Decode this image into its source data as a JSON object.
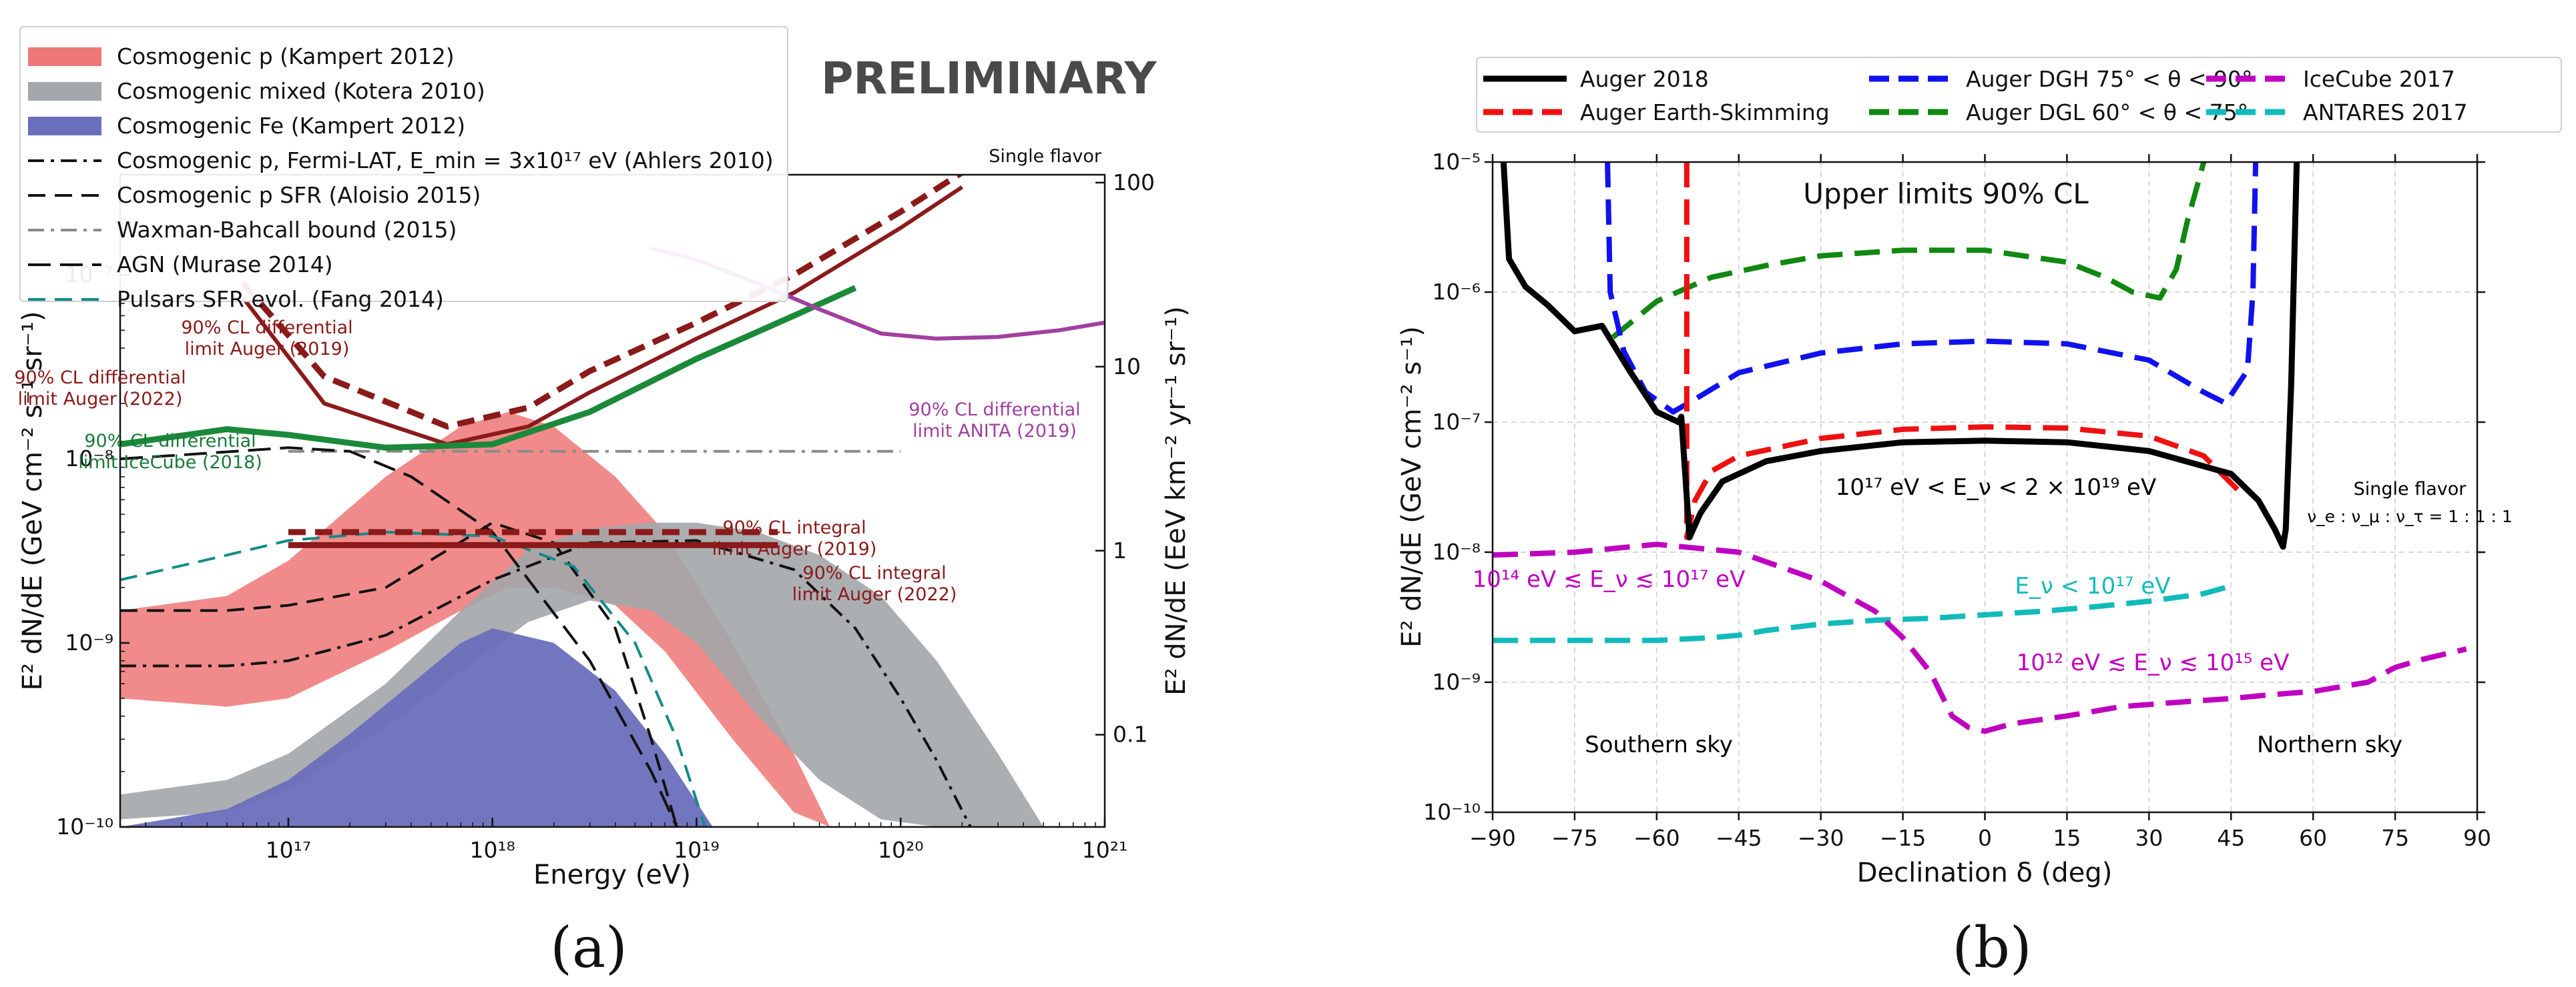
{
  "chart_data": [
    {
      "panel_label": "(a)",
      "type": "line",
      "watermark": "PRELIMINARY",
      "corner_note": "Single flavor",
      "xlabel": "Energy (eV)",
      "ylabel": "E² dN/dE (GeV cm⁻² s⁻¹ sr⁻¹)",
      "ylabel_right": "E² dN/dE (EeV km⁻² yr⁻¹ sr⁻¹)",
      "x_scale": "log",
      "y_scale": "log",
      "xlim": [
        1.5e+16,
        1e+21
      ],
      "ylim": [
        1e-10,
        3.5e-07
      ],
      "x_ticks": [
        "10¹⁷",
        "10¹⁸",
        "10¹⁹",
        "10²⁰",
        "10²¹"
      ],
      "y_ticks": [
        "10⁻¹⁰",
        "10⁻⁹",
        "10⁻⁸",
        "10⁻⁷"
      ],
      "y_right_ticks": [
        "0.1",
        "1",
        "10",
        "100"
      ],
      "legend_position": "top-left",
      "legend": [
        {
          "label": "Cosmogenic p (Kampert 2012)",
          "kind": "band",
          "color": "#ee7777"
        },
        {
          "label": "Cosmogenic mixed (Kotera 2010)",
          "kind": "band",
          "color": "#a3a6aa"
        },
        {
          "label": "Cosmogenic Fe (Kampert 2012)",
          "kind": "band",
          "color": "#6a6fbb"
        },
        {
          "label": "Cosmogenic p, Fermi-LAT, E_min = 3x10¹⁷ eV (Ahlers 2010)",
          "kind": "dashdot",
          "color": "#111111"
        },
        {
          "label": "Cosmogenic p SFR (Aloisio 2015)",
          "kind": "dashed",
          "color": "#111111"
        },
        {
          "label": "Waxman-Bahcall bound (2015)",
          "kind": "dashdot",
          "color": "#8a8a8a"
        },
        {
          "label": "AGN (Murase 2014)",
          "kind": "longdash",
          "color": "#111111"
        },
        {
          "label": "Pulsars SFR evol. (Fang 2014)",
          "kind": "dashed",
          "color": "#138a8a"
        }
      ],
      "annotations": [
        {
          "text": [
            "90% CL differential",
            "limit Auger (2019)"
          ],
          "color": "#8b1a1a"
        },
        {
          "text": [
            "90% CL differential",
            "limit Auger (2022)"
          ],
          "color": "#8b1a1a"
        },
        {
          "text": [
            "90% CL differential",
            "limit IceCube (2018)"
          ],
          "color": "#1a7a3a"
        },
        {
          "text": [
            "90% CL differential",
            "limit ANITA (2019)"
          ],
          "color": "#a040a0"
        },
        {
          "text": [
            "90% CL integral",
            "limit Auger (2019)"
          ],
          "color": "#8b1a1a"
        },
        {
          "text": [
            "90% CL integral",
            "limit Auger (2022)"
          ],
          "color": "#8b1a1a"
        }
      ],
      "bands": [
        {
          "name": "Cosmogenic p (Kampert 2012)",
          "color": "#ee7777",
          "alpha": 0.85,
          "x": [
            1.5e+16,
            5e+16,
            1e+17,
            3e+17,
            7e+17,
            1.2e+18,
            2e+18,
            4e+18,
            7e+18,
            1.5e+19,
            3e+19,
            4.5e+19
          ],
          "upper": [
            1.5e-09,
            1.8e-09,
            2.8e-09,
            8e-09,
            1.5e-08,
            1.8e-08,
            1.5e-08,
            8e-09,
            4e-09,
            1e-09,
            2.5e-10,
            1e-10
          ],
          "lower": [
            5e-10,
            4.5e-10,
            5e-10,
            9e-10,
            1.5e-09,
            2e-09,
            2e-09,
            1.6e-09,
            9e-10,
            3e-10,
            1.2e-10,
            1e-10
          ]
        },
        {
          "name": "Cosmogenic mixed (Kotera 2010)",
          "color": "#a3a6aa",
          "alpha": 0.9,
          "x": [
            1.5e+16,
            5e+16,
            1e+17,
            3e+17,
            7e+17,
            1.5e+18,
            3e+18,
            6e+18,
            1e+19,
            2e+19,
            4e+19,
            8e+19,
            1.5e+20,
            3e+20,
            5e+20
          ],
          "upper": [
            1.5e-10,
            1.8e-10,
            2.5e-10,
            6e-10,
            1.5e-09,
            3.2e-09,
            4.2e-09,
            4.5e-09,
            4.5e-09,
            4e-09,
            3e-09,
            1.8e-09,
            8e-10,
            2.5e-10,
            1e-10
          ],
          "lower": [
            1.1e-10,
            1.2e-10,
            1.6e-10,
            3.5e-10,
            7e-10,
            1.3e-09,
            1.7e-09,
            1.5e-09,
            1e-09,
            4e-10,
            1.8e-10,
            1.1e-10,
            1e-10,
            1e-10,
            1e-10
          ]
        },
        {
          "name": "Cosmogenic Fe (Kampert 2012)",
          "color": "#6a6fbb",
          "alpha": 0.95,
          "x": [
            1.5e+16,
            5e+16,
            1e+17,
            2e+17,
            4e+17,
            7e+17,
            1e+18,
            2e+18,
            4e+18,
            7e+18,
            1.2e+19
          ],
          "upper": [
            1e-10,
            1.25e-10,
            1.8e-10,
            3.2e-10,
            6e-10,
            1e-09,
            1.2e-09,
            1e-09,
            5.5e-10,
            2.5e-10,
            1e-10
          ],
          "lower": [
            1e-10,
            1e-10,
            1e-10,
            1e-10,
            1e-10,
            1e-10,
            1e-10,
            1e-10,
            1e-10,
            1e-10,
            1e-10
          ]
        }
      ],
      "series": [
        {
          "name": "Cosmogenic p, Fermi-LAT, E_min = 3x10¹⁷ eV (Ahlers 2010)",
          "color": "#111111",
          "dash": "dashdot",
          "x": [
            1.5e+16,
            5e+16,
            1e+17,
            3e+17,
            1e+18,
            3e+18,
            1e+19,
            3e+19,
            6e+19,
            1e+20,
            1.5e+20,
            2.2e+20
          ],
          "y": [
            7.5e-10,
            7.5e-10,
            8e-10,
            1.1e-09,
            2.2e-09,
            3.5e-09,
            3.6e-09,
            2.5e-09,
            1.2e-09,
            5e-10,
            2.3e-10,
            1e-10
          ]
        },
        {
          "name": "Cosmogenic p SFR (Aloisio 2015)",
          "color": "#111111",
          "dash": "dashed",
          "x": [
            1.5e+16,
            5e+16,
            1e+17,
            3e+17,
            1e+18,
            2e+18,
            4e+18,
            6e+18,
            8e+18
          ],
          "y": [
            1.5e-09,
            1.5e-09,
            1.6e-09,
            2e-09,
            4.5e-09,
            3.5e-09,
            1.2e-09,
            3e-10,
            1e-10
          ]
        },
        {
          "name": "Waxman-Bahcall bound (2015)",
          "color": "#8a8a8a",
          "dash": "dashdot",
          "x": [
            1e+17,
            1e+20
          ],
          "y": [
            1.1e-08,
            1.1e-08
          ]
        },
        {
          "name": "AGN (Murase 2014)",
          "color": "#111111",
          "dash": "longdash",
          "x": [
            1.5e+16,
            3e+16,
            1e+17,
            2e+17,
            4e+17,
            1e+18,
            3e+18,
            6e+18,
            8e+18
          ],
          "y": [
            1e-08,
            1.05e-08,
            1.15e-08,
            1.1e-08,
            8e-09,
            4e-09,
            8e-10,
            2e-10,
            1e-10
          ]
        },
        {
          "name": "Pulsars SFR evol. (Fang 2014)",
          "color": "#138a8a",
          "dash": "dashed",
          "x": [
            1.5e+16,
            5e+16,
            1e+17,
            3e+17,
            1e+18,
            2.5e+18,
            5e+18,
            8e+18,
            1.1e+19
          ],
          "y": [
            2.2e-09,
            3e-09,
            3.6e-09,
            4e-09,
            3.8e-09,
            2.6e-09,
            1e-09,
            3e-10,
            1e-10
          ]
        },
        {
          "name": "90% CL differential limit Auger (2019)",
          "color": "#8b1a1a",
          "dash": "dashed",
          "width": 9,
          "x": [
            6e+16,
            1.5e+17,
            6e+17,
            1.5e+18,
            3e+18,
            1e+19,
            3e+19,
            1e+20,
            2e+20
          ],
          "y": [
            9e-08,
            2.8e-08,
            1.5e-08,
            1.9e-08,
            3e-08,
            5.5e-08,
            1e-07,
            2.2e-07,
            3.6e-07
          ]
        },
        {
          "name": "90% CL differential limit Auger (2022)",
          "color": "#8b1a1a",
          "dash": "solid",
          "width": 6,
          "x": [
            6e+16,
            1.5e+17,
            6e+17,
            1.5e+18,
            3e+18,
            1e+19,
            3e+19,
            1e+20,
            2e+20
          ],
          "y": [
            7.5e-08,
            2e-08,
            1.2e-08,
            1.5e-08,
            2.3e-08,
            4.5e-08,
            8e-08,
            1.8e-07,
            3e-07
          ]
        },
        {
          "name": "90% CL differential limit IceCube (2018)",
          "color": "#1a8a3a",
          "dash": "solid",
          "width": 9,
          "x": [
            1.5e+16,
            5e+16,
            1e+17,
            3e+17,
            1e+18,
            3e+18,
            1e+19,
            3e+19,
            6e+19
          ],
          "y": [
            1.2e-08,
            1.45e-08,
            1.35e-08,
            1.15e-08,
            1.2e-08,
            1.8e-08,
            3.5e-08,
            6e-08,
            8.5e-08
          ]
        },
        {
          "name": "90% CL differential limit ANITA (2019)",
          "color": "#a040a0",
          "dash": "solid",
          "width": 6,
          "x": [
            6e+18,
            1e+19,
            2e+19,
            4e+19,
            8e+19,
            1.5e+20,
            3e+20,
            6e+20,
            1e+21
          ],
          "y": [
            1.4e-07,
            1.2e-07,
            9e-08,
            6.5e-08,
            4.8e-08,
            4.5e-08,
            4.6e-08,
            5e-08,
            5.5e-08
          ]
        },
        {
          "name": "90% CL integral limit Auger (2019)",
          "color": "#8b1a1a",
          "dash": "dashed",
          "width": 9,
          "x": [
            1e+17,
            2.5e+19
          ],
          "y": [
            4e-09,
            4e-09
          ]
        },
        {
          "name": "90% CL integral limit Auger (2022)",
          "color": "#8b1a1a",
          "dash": "solid",
          "width": 9,
          "x": [
            1e+17,
            2.5e+19
          ],
          "y": [
            3.4e-09,
            3.4e-09
          ]
        }
      ]
    },
    {
      "panel_label": "(b)",
      "type": "line",
      "title": "Upper limits 90% CL",
      "xlabel": "Declination δ (deg)",
      "ylabel": "E² dN/dE (GeV cm⁻² s⁻¹)",
      "x_scale": "linear",
      "y_scale": "log",
      "xlim": [
        -90,
        90
      ],
      "ylim": [
        1e-10,
        1e-05
      ],
      "x_ticks": [
        "−90",
        "−75",
        "−60",
        "−45",
        "−30",
        "−15",
        "0",
        "15",
        "30",
        "45",
        "60",
        "75",
        "90"
      ],
      "y_ticks": [
        "10⁻¹⁰",
        "10⁻⁹",
        "10⁻⁸",
        "10⁻⁷",
        "10⁻⁶",
        "10⁻⁵"
      ],
      "grid": true,
      "legend_position": "top",
      "legend": [
        {
          "label": "Auger 2018",
          "kind": "solid",
          "color": "#000000"
        },
        {
          "label": "Auger Earth-Skimming",
          "kind": "dashed",
          "color": "#ee1111"
        },
        {
          "label": "Auger DGH 75° < θ < 90°",
          "kind": "dashed",
          "color": "#1111ee"
        },
        {
          "label": "Auger DGL 60° < θ < 75°",
          "kind": "dashed",
          "color": "#118811"
        },
        {
          "label": "IceCube 2017",
          "kind": "dashed",
          "color": "#c000c0"
        },
        {
          "label": "ANTARES 2017",
          "kind": "dashed",
          "color": "#11bbbb"
        }
      ],
      "annotations": [
        {
          "text": "10¹⁷ eV < E_ν < 2 × 10¹⁹ eV",
          "color": "#000000"
        },
        {
          "text": "Single flavor",
          "color": "#000000"
        },
        {
          "text": "ν_e : ν_μ : ν_τ = 1 : 1 : 1",
          "color": "#000000"
        },
        {
          "text": "10¹⁴ eV ≲ E_ν ≲ 10¹⁷ eV",
          "color": "#c000c0"
        },
        {
          "text": "E_ν < 10¹⁷ eV",
          "color": "#11bbbb"
        },
        {
          "text": "10¹² eV ≲ E_ν ≲ 10¹⁵ eV",
          "color": "#c000c0"
        },
        {
          "text": "Southern sky",
          "color": "#000000"
        },
        {
          "text": "Northern sky",
          "color": "#000000"
        }
      ],
      "series": [
        {
          "name": "Auger 2018",
          "color": "#000000",
          "dash": "solid",
          "x": [
            -88,
            -87,
            -84,
            -80,
            -75,
            -70,
            -65,
            -60,
            -56,
            -55.5,
            -54,
            -52,
            -48,
            -40,
            -30,
            -15,
            0,
            15,
            30,
            45,
            50,
            53,
            54.5,
            55,
            56,
            57
          ],
          "y": [
            1e-05,
            1.8e-06,
            1.1e-06,
            8e-07,
            5e-07,
            5.5e-07,
            2.5e-07,
            1.2e-07,
            1e-07,
            1.1e-07,
            1.3e-08,
            2e-08,
            3.5e-08,
            5e-08,
            6e-08,
            7e-08,
            7.2e-08,
            7e-08,
            6e-08,
            4e-08,
            2.5e-08,
            1.5e-08,
            1.1e-08,
            1.5e-08,
            2e-07,
            1e-05
          ]
        },
        {
          "name": "Auger Earth-Skimming",
          "color": "#ee1111",
          "dash": "dashed",
          "x": [
            -54.5,
            -54.5,
            -53,
            -50,
            -45,
            -30,
            -15,
            0,
            15,
            30,
            40,
            47
          ],
          "y": [
            1e-05,
            1.3e-08,
            2.5e-08,
            4.2e-08,
            5.5e-08,
            7.5e-08,
            8.8e-08,
            9.2e-08,
            9e-08,
            7.8e-08,
            5.5e-08,
            2.8e-08
          ]
        },
        {
          "name": "Auger DGH 75° < θ < 90°",
          "color": "#1111ee",
          "dash": "dashed",
          "x": [
            -69,
            -68.5,
            -66,
            -62,
            -57,
            -53,
            -45,
            -30,
            -15,
            0,
            15,
            30,
            40,
            44,
            48,
            49,
            49.5
          ],
          "y": [
            1e-05,
            1e-06,
            3.5e-07,
            1.7e-07,
            1.2e-07,
            1.5e-07,
            2.4e-07,
            3.4e-07,
            4e-07,
            4.2e-07,
            4e-07,
            3e-07,
            1.7e-07,
            1.4e-07,
            2.5e-07,
            1e-06,
            1e-05
          ]
        },
        {
          "name": "Auger DGL 60° < θ < 75°",
          "color": "#118811",
          "dash": "dashed",
          "x": [
            -68,
            -60,
            -50,
            -40,
            -30,
            -15,
            0,
            15,
            22,
            27,
            32,
            35,
            37,
            39,
            40
          ],
          "y": [
            4.5e-07,
            8.5e-07,
            1.3e-06,
            1.6e-06,
            1.9e-06,
            2.1e-06,
            2.1e-06,
            1.7e-06,
            1.3e-06,
            1e-06,
            9e-07,
            1.5e-06,
            3.5e-06,
            7e-06,
            1e-05
          ]
        },
        {
          "name": "IceCube 2017",
          "color": "#c000c0",
          "dash": "dashed",
          "x": [
            -90,
            -75,
            -60,
            -45,
            -30,
            -20,
            -15,
            -10,
            -6,
            -3,
            0,
            5,
            15,
            25,
            35,
            45,
            52,
            60,
            70,
            75,
            80,
            88
          ],
          "y": [
            9.5e-09,
            1e-08,
            1.15e-08,
            1e-08,
            6e-09,
            3.5e-09,
            2.2e-09,
            1.2e-09,
            5.5e-10,
            4.5e-10,
            4.2e-10,
            4.8e-10,
            5.5e-10,
            6.5e-10,
            7e-10,
            7.5e-10,
            8e-10,
            8.5e-10,
            1e-09,
            1.3e-09,
            1.5e-09,
            1.8e-09
          ]
        },
        {
          "name": "ANTARES 2017",
          "color": "#11bbbb",
          "dash": "dashed",
          "x": [
            -90,
            -75,
            -60,
            -50,
            -45,
            -40,
            -30,
            -20,
            -10,
            0,
            10,
            20,
            30,
            40,
            45
          ],
          "y": [
            2.1e-09,
            2.1e-09,
            2.1e-09,
            2.2e-09,
            2.3e-09,
            2.5e-09,
            2.8e-09,
            3e-09,
            3.1e-09,
            3.3e-09,
            3.5e-09,
            3.8e-09,
            4.2e-09,
            4.8e-09,
            5.5e-09
          ]
        }
      ]
    }
  ]
}
